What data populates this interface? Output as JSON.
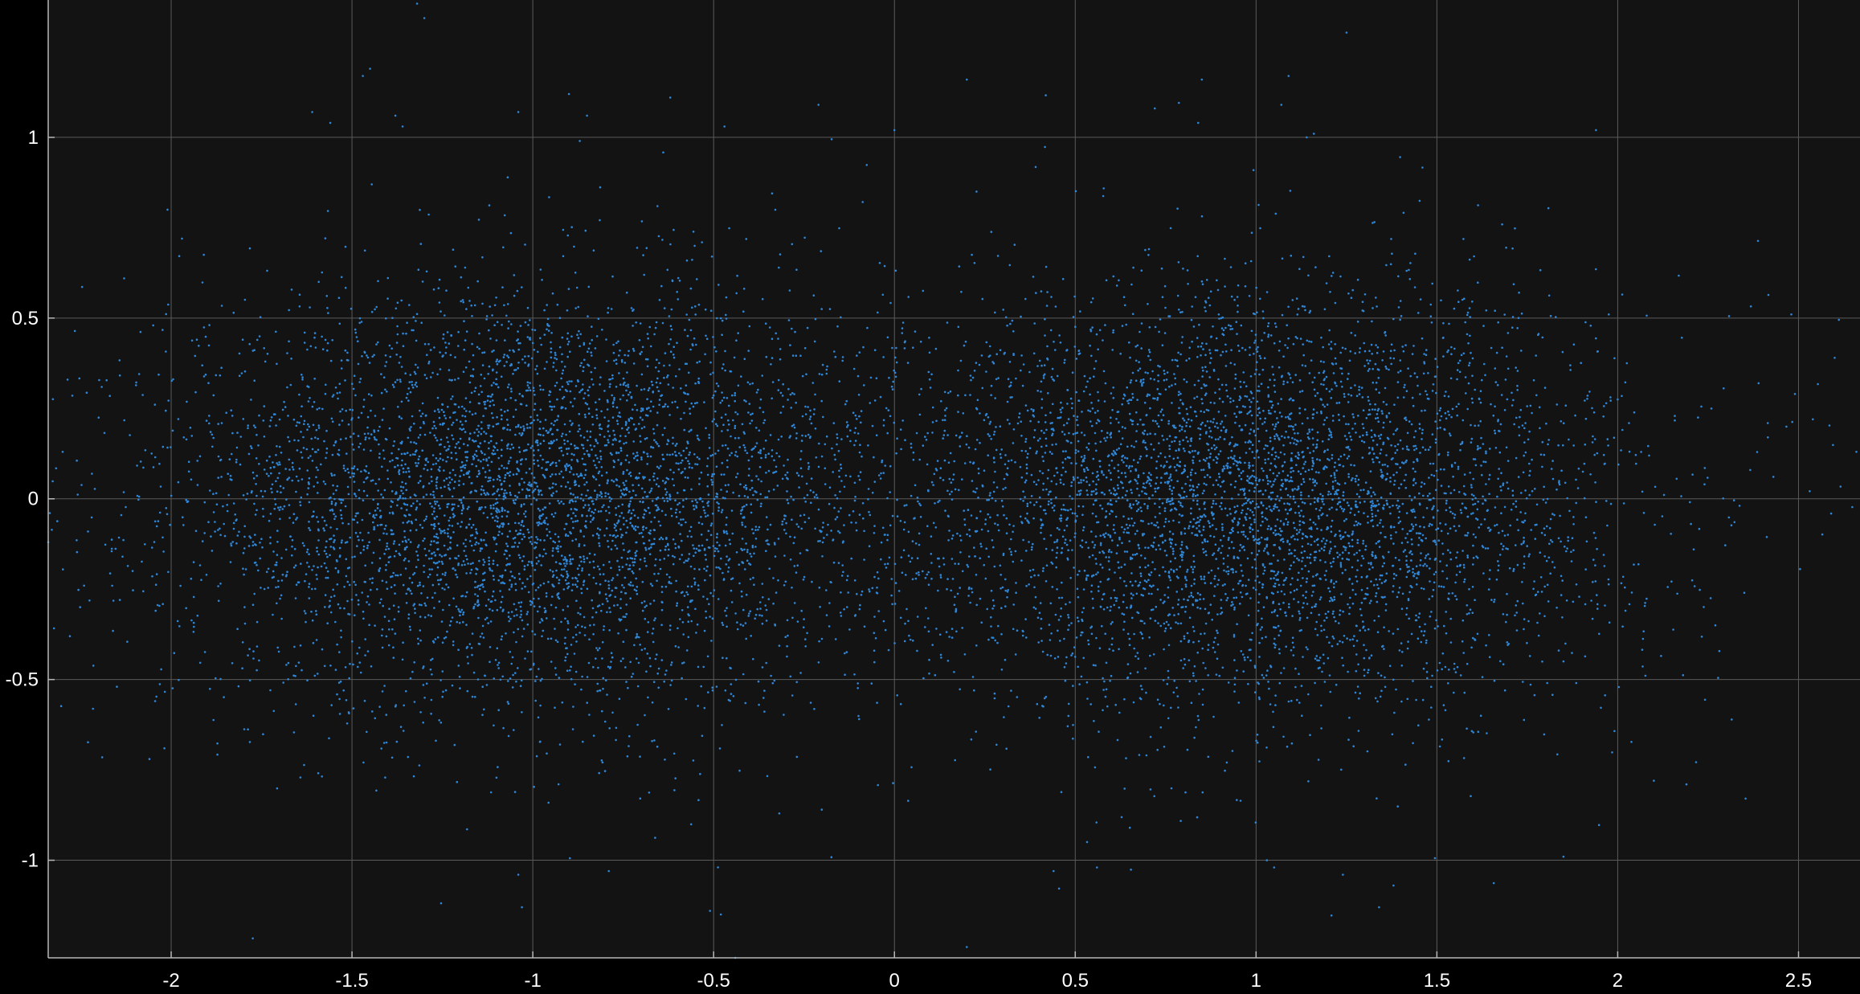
{
  "colors": {
    "figure_background": "#000000",
    "axes_background": "#131313",
    "grid": "#5a5a5a",
    "axis_line": "#b8b8b8",
    "tick_label": "#ffffff",
    "marker": "#2f86d6"
  },
  "chart_data": {
    "type": "scatter",
    "title": "",
    "xlabel": "",
    "ylabel": "",
    "xlim": [
      -2.34,
      2.67
    ],
    "ylim": [
      -1.27,
      1.38
    ],
    "xticks": [
      -2,
      -1.5,
      -1,
      -0.5,
      0,
      0.5,
      1,
      1.5,
      2,
      2.5
    ],
    "xtick_labels": [
      "-2",
      "-1.5",
      "-1",
      "-0.5",
      "0",
      "0.5",
      "1",
      "1.5",
      "2",
      "2.5"
    ],
    "yticks": [
      -1,
      -0.5,
      0,
      0.5,
      1
    ],
    "ytick_labels": [
      "-1",
      "-0.5",
      "0",
      "0.5",
      "1"
    ],
    "grid": true,
    "legend": "none",
    "marker": "dot",
    "series": [
      {
        "approx_point_count": 10000,
        "clusters": [
          {
            "x_center": -1.0,
            "y_center": 0.0,
            "x_spread": 0.5,
            "y_spread": 0.29,
            "weight": 0.5
          },
          {
            "x_center": 1.0,
            "y_center": 0.0,
            "x_spread": 0.5,
            "y_spread": 0.29,
            "weight": 0.5
          }
        ],
        "points": [
          [
            -1.32,
            1.37
          ],
          [
            -1.3,
            1.33
          ],
          [
            -1.45,
            1.19
          ],
          [
            -1.47,
            1.17
          ],
          [
            -1.61,
            1.07
          ],
          [
            -1.56,
            1.04
          ],
          [
            -1.38,
            1.06
          ],
          [
            -1.36,
            1.03
          ],
          [
            -1.04,
            1.07
          ],
          [
            -0.9,
            1.12
          ],
          [
            -0.85,
            1.06
          ],
          [
            -0.87,
            0.99
          ],
          [
            -0.62,
            1.11
          ],
          [
            -0.47,
            1.03
          ],
          [
            -0.21,
            1.09
          ],
          [
            0.0,
            1.02
          ],
          [
            0.2,
            1.16
          ],
          [
            1.25,
            1.29
          ],
          [
            1.09,
            1.17
          ],
          [
            0.85,
            1.16
          ],
          [
            1.07,
            1.09
          ],
          [
            0.72,
            1.08
          ],
          [
            0.84,
            1.04
          ],
          [
            1.14,
            1.0
          ],
          [
            1.16,
            1.01
          ],
          [
            1.94,
            1.02
          ],
          [
            -2.13,
            0.61
          ],
          [
            -2.01,
            0.8
          ],
          [
            -1.97,
            0.72
          ],
          [
            2.48,
            0.51
          ],
          [
            2.6,
            0.39
          ],
          [
            2.49,
            0.29
          ],
          [
            -2.35,
            0.21
          ],
          [
            -2.3,
            0.13
          ],
          [
            2.66,
            0.13
          ],
          [
            2.24,
            0.04
          ],
          [
            -2.34,
            -0.12
          ],
          [
            2.27,
            -0.35
          ],
          [
            2.35,
            -0.26
          ],
          [
            2.21,
            -0.14
          ],
          [
            -2.28,
            -0.38
          ],
          [
            -2.15,
            -0.52
          ],
          [
            -2.06,
            -0.72
          ],
          [
            2.19,
            -0.79
          ],
          [
            2.1,
            -0.78
          ],
          [
            1.85,
            -0.99
          ],
          [
            1.38,
            -1.07
          ],
          [
            1.34,
            -1.13
          ],
          [
            -1.04,
            -1.04
          ],
          [
            -1.03,
            -1.13
          ],
          [
            -0.51,
            -1.14
          ],
          [
            -0.48,
            -1.15
          ],
          [
            0.2,
            -1.24
          ],
          [
            -0.79,
            -1.03
          ],
          [
            -0.44,
            -1.27
          ],
          [
            0.44,
            -1.03
          ],
          [
            0.56,
            -1.02
          ],
          [
            1.03,
            -1.0
          ],
          [
            1.05,
            -1.02
          ],
          [
            1.24,
            -1.04
          ]
        ]
      }
    ]
  }
}
